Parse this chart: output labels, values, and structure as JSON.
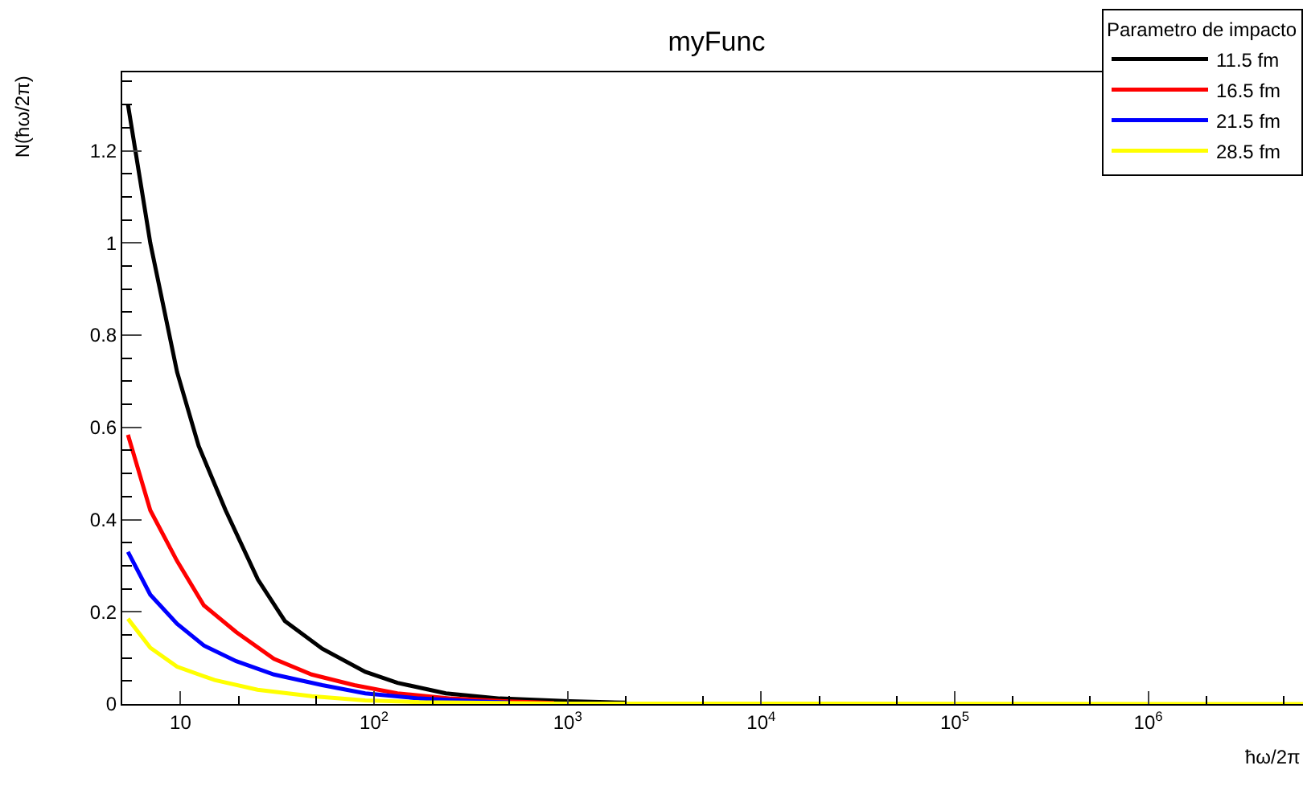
{
  "chart_data": {
    "type": "line",
    "title": "myFunc",
    "xlabel": "ħω/2π",
    "ylabel": "N(ħω/2π)",
    "legend_title": "Parametro de impacto",
    "legend": "top right",
    "marker": "none",
    "line_style": "solid",
    "log": "x",
    "xlim": [
      5,
      6300000
    ],
    "xticks": [
      10,
      {
        "value": 100,
        "label": "10$^{2}$"
      },
      {
        "value": 1000,
        "label": "10$^{3}$"
      },
      {
        "value": 10000,
        "label": "10$^{4}$"
      },
      {
        "value": 100000,
        "label": "10$^{5}$"
      },
      {
        "value": 1000000,
        "label": "10$^{6}$"
      }
    ],
    "ylim": [
      0,
      1.37
    ],
    "yticks": [
      0,
      0.2,
      0.4,
      0.6,
      0.8,
      1,
      1.2
    ],
    "series": [
      {
        "name": "11.5 fm",
        "color": "#000000",
        "x": [
          5.35,
          6.98,
          9.6,
          12.4,
          17.1,
          25.1,
          34.6,
          54,
          90,
          132,
          235,
          447,
          1020,
          2000
        ],
        "values": [
          1.3,
          1.0,
          0.72,
          0.56,
          0.42,
          0.27,
          0.18,
          0.12,
          0.07,
          0.046,
          0.023,
          0.012,
          0.006,
          0.003
        ]
      },
      {
        "name": "16.5 fm",
        "color": "#ff0000",
        "x": [
          5.35,
          6.98,
          9.6,
          13.2,
          19.4,
          30.4,
          47.6,
          79,
          132,
          250,
          470,
          850
        ],
        "values": [
          0.584,
          0.42,
          0.31,
          0.214,
          0.156,
          0.098,
          0.064,
          0.041,
          0.023,
          0.012,
          0.006,
          0.002
        ]
      },
      {
        "name": "21.5 fm",
        "color": "#0000ff",
        "x": [
          5.35,
          6.98,
          9.6,
          13.2,
          19.4,
          30.4,
          54,
          90,
          171,
          325,
          505
        ],
        "values": [
          0.33,
          0.237,
          0.174,
          0.127,
          0.093,
          0.064,
          0.041,
          0.023,
          0.012,
          0.006,
          0.003
        ]
      },
      {
        "name": "28.5 fm",
        "color": "#ffff00",
        "x": [
          5.35,
          6.98,
          9.6,
          15,
          25,
          47.6,
          90,
          171,
          1000,
          6300000
        ],
        "values": [
          0.185,
          0.122,
          0.081,
          0.052,
          0.031,
          0.017,
          0.008,
          0.004,
          0.001,
          0
        ]
      }
    ]
  }
}
